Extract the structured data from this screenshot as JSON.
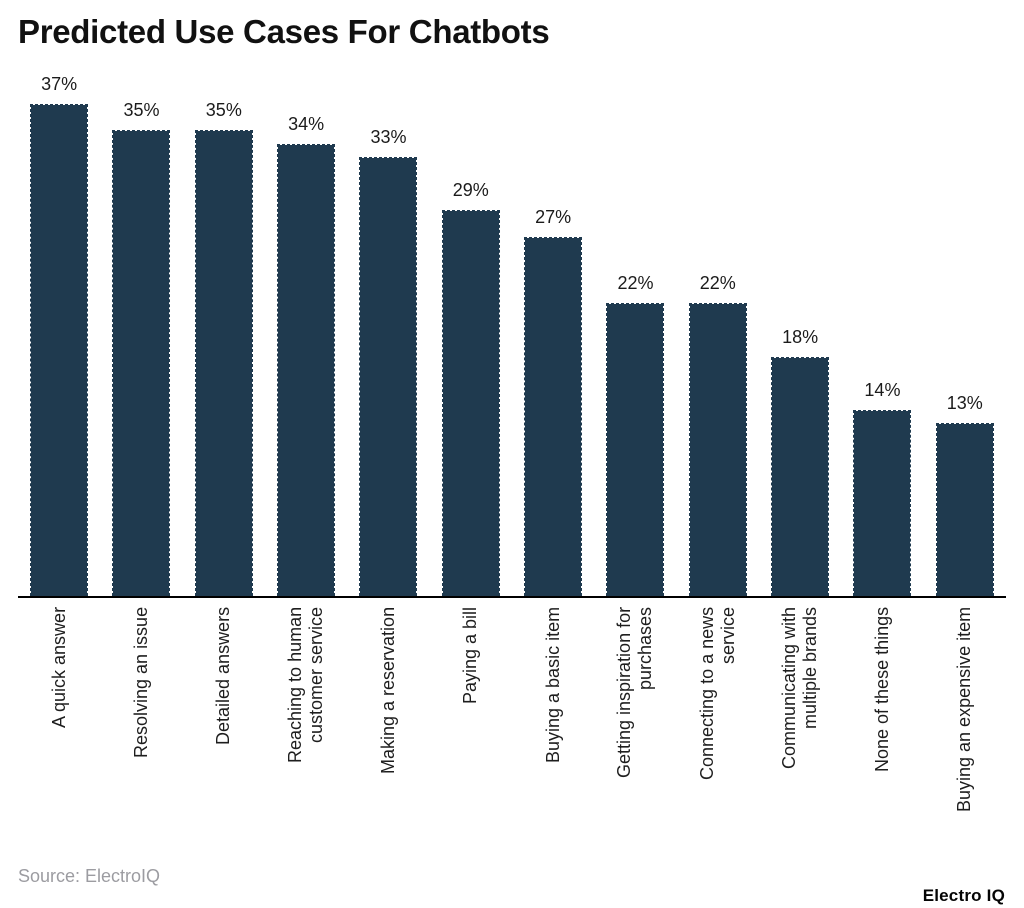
{
  "page": {
    "title": "Predicted Use Cases For Chatbots",
    "source": "Source: ElectroIQ",
    "brand": "Electro IQ"
  },
  "colors": {
    "background": "#ffffff",
    "bar": "#1f3a4f",
    "title": "#111111",
    "value_label": "#1b1b1b",
    "category_label": "#1e1e1e",
    "axis_line": "#000000",
    "source_text": "#9c9ca1"
  },
  "chart_data": {
    "type": "bar",
    "title": "Predicted Use Cases For Chatbots",
    "categories": [
      "A quick answer",
      "Resolving an issue",
      "Detailed answers",
      "Reaching to human\ncustomer service",
      "Making a reservation",
      "Paying a bill",
      "Buying a basic item",
      "Getting inspiration for\npurchases",
      "Connecting to a news\nservice",
      "Communicating with\nmultiple brands",
      "None of these things",
      "Buying an expensive item"
    ],
    "values": [
      37,
      35,
      35,
      34,
      33,
      29,
      27,
      22,
      22,
      18,
      14,
      13
    ],
    "unit": "%",
    "value_label_position": "above-bar",
    "category_label_rotation": -90,
    "xlabel": "",
    "ylabel": "",
    "ylim": [
      0,
      40
    ],
    "grid": false,
    "legend": false,
    "source": "Source: ElectroIQ",
    "brand": "Electro IQ"
  }
}
